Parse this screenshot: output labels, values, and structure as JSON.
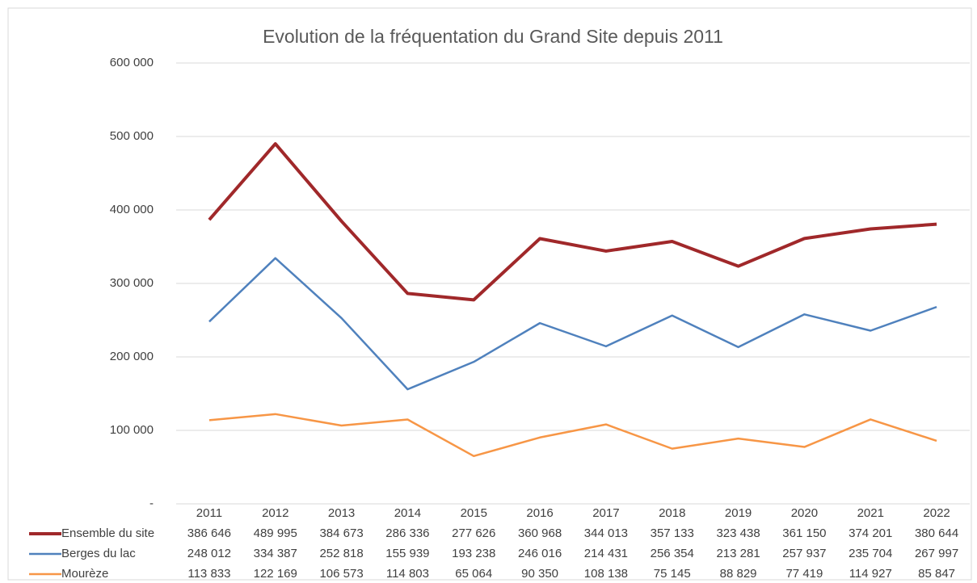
{
  "chart_data": {
    "type": "line",
    "title": "Evolution de la fréquentation du Grand Site depuis 2011",
    "categories": [
      "2011",
      "2012",
      "2013",
      "2014",
      "2015",
      "2016",
      "2017",
      "2018",
      "2019",
      "2020",
      "2021",
      "2022"
    ],
    "series": [
      {
        "name": "Ensemble du site",
        "color": "#a0282a",
        "values": [
          386646,
          489995,
          384673,
          286336,
          277626,
          360968,
          344013,
          357133,
          323438,
          361150,
          374201,
          380644
        ],
        "value_labels": [
          "386 646",
          "489 995",
          "384 673",
          "286 336",
          "277 626",
          "360 968",
          "344 013",
          "357 133",
          "323 438",
          "361 150",
          "374 201",
          "380 644"
        ]
      },
      {
        "name": "Berges du lac",
        "color": "#4f81bd",
        "values": [
          248012,
          334387,
          252818,
          155939,
          193238,
          246016,
          214431,
          256354,
          213281,
          257937,
          235704,
          267997
        ],
        "value_labels": [
          "248 012",
          "334 387",
          "252 818",
          "155 939",
          "193 238",
          "246 016",
          "214 431",
          "256 354",
          "213 281",
          "257 937",
          "235 704",
          "267 997"
        ]
      },
      {
        "name": "Mourèze",
        "color": "#f79646",
        "values": [
          113833,
          122169,
          106573,
          114803,
          65064,
          90350,
          108138,
          75145,
          88829,
          77419,
          114927,
          85847
        ],
        "value_labels": [
          "113 833",
          "122 169",
          "106 573",
          "114 803",
          "65 064",
          "90 350",
          "108 138",
          "75 145",
          "88 829",
          "77 419",
          "114 927",
          "85 847"
        ]
      }
    ],
    "ylim": [
      0,
      600000
    ],
    "yticks": [
      {
        "value": 0,
        "label": "-"
      },
      {
        "value": 100000,
        "label": "100 000"
      },
      {
        "value": 200000,
        "label": "200 000"
      },
      {
        "value": 300000,
        "label": "300 000"
      },
      {
        "value": 400000,
        "label": "400 000"
      },
      {
        "value": 500000,
        "label": "500 000"
      },
      {
        "value": 600000,
        "label": "600 000"
      }
    ],
    "grid": true,
    "legend": "data-table"
  }
}
